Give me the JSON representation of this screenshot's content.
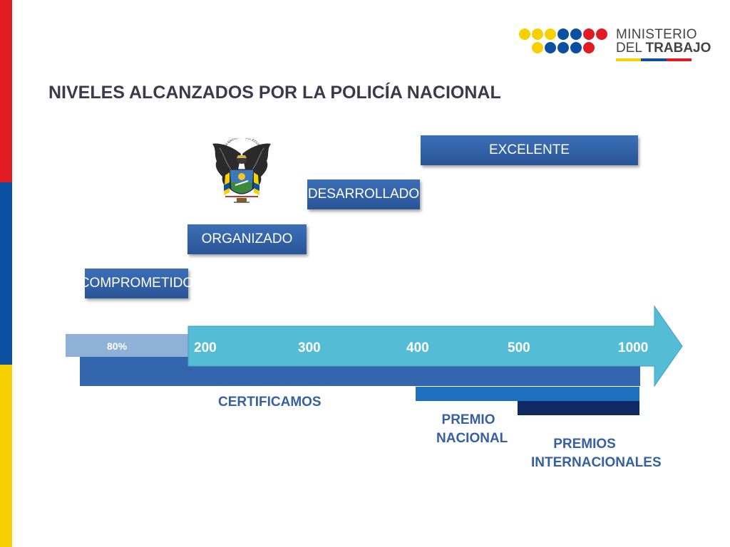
{
  "colors": {
    "flag_yellow": "#f7d000",
    "flag_blue": "#0b4fa0",
    "flag_red": "#e21b23",
    "level_box": "#3466ad",
    "arrow": "#55bcd6",
    "label_text": "#3560a4"
  },
  "logo": {
    "line1": "MINISTERIO",
    "line2_a": "DEL",
    "line2_b": "TRABAJO"
  },
  "title": "NIVELES ALCANZADOS POR LA POLICÍA NACIONAL",
  "emblem": {
    "text": "POLICÍA NACIONAL DEL ECUADOR",
    "icon": "police-emblem-icon"
  },
  "levels": [
    {
      "label": "COMPROMETIDO"
    },
    {
      "label": "ORGANIZADO"
    },
    {
      "label": "DESARROLLADO"
    },
    {
      "label": "EXCELENTE"
    }
  ],
  "scale": {
    "start_label": "80%",
    "ticks": [
      "200",
      "300",
      "400",
      "500",
      "1000"
    ]
  },
  "bands": {
    "certificamos": "CERTIFICAMOS",
    "premio_line1": "PREMIO",
    "premio_line2": "NACIONAL",
    "internacionales_line1": "PREMIOS",
    "internacionales_line2": "INTERNACIONALES"
  }
}
